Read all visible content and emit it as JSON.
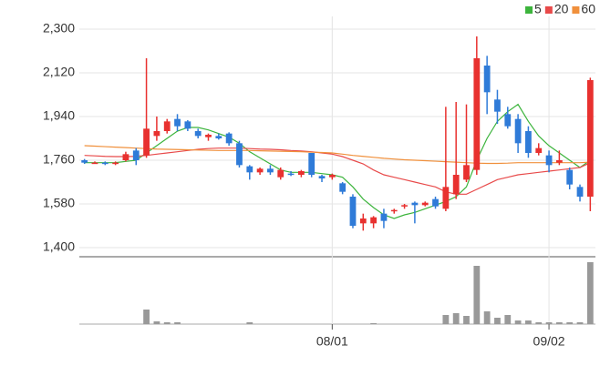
{
  "chart_data": {
    "type": "candlestick",
    "categories": [
      null,
      null,
      null,
      null,
      null,
      null,
      null,
      null,
      null,
      null,
      null,
      null,
      null,
      null,
      null,
      null,
      null,
      null,
      null,
      null,
      null,
      null,
      null,
      null,
      "08/01",
      null,
      null,
      null,
      null,
      null,
      null,
      null,
      null,
      null,
      null,
      null,
      null,
      null,
      null,
      null,
      null,
      null,
      null,
      null,
      null,
      "09/02",
      null,
      null,
      null,
      null
    ],
    "candles": {
      "open": [
        1760,
        1750,
        1750,
        1745,
        1760,
        1800,
        1780,
        1860,
        1880,
        1930,
        1920,
        1880,
        1855,
        1860,
        1870,
        1830,
        1735,
        1710,
        1725,
        1690,
        1705,
        1700,
        1790,
        1695,
        1690,
        1665,
        1610,
        1500,
        1500,
        1540,
        1550,
        1570,
        1585,
        1575,
        1600,
        1560,
        1620,
        1680,
        1720,
        2150,
        2010,
        1950,
        1930,
        1880,
        1790,
        1780,
        1750,
        1720,
        1650,
        1610
      ],
      "high": [
        1765,
        1755,
        1755,
        1755,
        1795,
        1810,
        2180,
        1940,
        1930,
        1950,
        1925,
        1890,
        1870,
        1870,
        1875,
        1840,
        1740,
        1730,
        1740,
        1730,
        1715,
        1720,
        1790,
        1700,
        1705,
        1670,
        1620,
        1540,
        1530,
        1560,
        1560,
        1580,
        1590,
        1590,
        1610,
        1980,
        2000,
        1990,
        2270,
        2190,
        2050,
        1980,
        1950,
        1900,
        1830,
        1800,
        1800,
        1730,
        1660,
        2100
      ],
      "low": [
        1745,
        1745,
        1740,
        1740,
        1755,
        1740,
        1770,
        1840,
        1870,
        1880,
        1880,
        1850,
        1840,
        1845,
        1820,
        1730,
        1680,
        1700,
        1700,
        1680,
        1695,
        1690,
        1690,
        1670,
        1680,
        1620,
        1480,
        1470,
        1480,
        1480,
        1540,
        1560,
        1500,
        1570,
        1560,
        1550,
        1600,
        1670,
        1700,
        1950,
        1910,
        1890,
        1790,
        1770,
        1780,
        1710,
        1740,
        1640,
        1590,
        1550
      ],
      "close": [
        1750,
        1750,
        1745,
        1750,
        1785,
        1760,
        1890,
        1880,
        1920,
        1900,
        1890,
        1860,
        1865,
        1850,
        1830,
        1740,
        1710,
        1725,
        1710,
        1720,
        1700,
        1715,
        1700,
        1685,
        1700,
        1630,
        1490,
        1520,
        1525,
        1510,
        1555,
        1575,
        1575,
        1585,
        1570,
        1650,
        1700,
        1740,
        2180,
        2040,
        1960,
        1900,
        1830,
        1790,
        1810,
        1740,
        1760,
        1660,
        1610,
        2090
      ],
      "up_color": "#e8312f",
      "down_color": "#2f7bd8"
    },
    "series": [
      {
        "name": "5",
        "color": "#3cb43c",
        "values": [
          1750,
          1750,
          1750,
          1750,
          1755,
          1760,
          1790,
          1820,
          1850,
          1880,
          1895,
          1895,
          1885,
          1870,
          1855,
          1830,
          1795,
          1770,
          1745,
          1720,
          1710,
          1710,
          1710,
          1705,
          1700,
          1690,
          1650,
          1600,
          1565,
          1535,
          1520,
          1535,
          1545,
          1560,
          1575,
          1590,
          1610,
          1650,
          1760,
          1850,
          1920,
          1960,
          1990,
          1920,
          1860,
          1820,
          1790,
          1760,
          1730,
          1760
        ]
      },
      {
        "name": "20",
        "color": "#e84a4a",
        "values": [
          1780,
          1778,
          1776,
          1775,
          1775,
          1776,
          1780,
          1785,
          1790,
          1795,
          1800,
          1805,
          1808,
          1810,
          1810,
          1810,
          1808,
          1806,
          1805,
          1803,
          1800,
          1798,
          1795,
          1790,
          1785,
          1775,
          1760,
          1745,
          1720,
          1700,
          1690,
          1680,
          1670,
          1660,
          1650,
          1630,
          1620,
          1620,
          1640,
          1660,
          1680,
          1690,
          1700,
          1705,
          1710,
          1715,
          1720,
          1725,
          1730,
          1750
        ]
      },
      {
        "name": "60",
        "color": "#f0903c",
        "values": [
          1820,
          1818,
          1816,
          1814,
          1812,
          1810,
          1808,
          1806,
          1805,
          1804,
          1803,
          1802,
          1801,
          1800,
          1800,
          1800,
          1800,
          1799,
          1798,
          1797,
          1796,
          1795,
          1793,
          1792,
          1790,
          1785,
          1780,
          1776,
          1772,
          1768,
          1765,
          1762,
          1760,
          1758,
          1756,
          1754,
          1752,
          1750,
          1748,
          1747,
          1747,
          1748,
          1750,
          1750,
          1750,
          1750,
          1750,
          1750,
          1750,
          1752
        ]
      }
    ],
    "volume": [
      0,
      0,
      0,
      0,
      0,
      0,
      16,
      3,
      2,
      2,
      0,
      0,
      0,
      0,
      0,
      0,
      2,
      0,
      0,
      0,
      0,
      0,
      0,
      0,
      0,
      0,
      0,
      0,
      1,
      0,
      0,
      0,
      0,
      0,
      0,
      10,
      12,
      9,
      64,
      14,
      7,
      10,
      4,
      4,
      2,
      2,
      2,
      2,
      2,
      68
    ],
    "volume_color": "#999999",
    "ylim": [
      1400,
      2300
    ],
    "yticks": [
      {
        "value": 1400,
        "label": "1,400"
      },
      {
        "value": 1580,
        "label": "1,580"
      },
      {
        "value": 1760,
        "label": "1,760"
      },
      {
        "value": 1940,
        "label": "1,940"
      },
      {
        "value": 2120,
        "label": "2,120"
      },
      {
        "value": 2300,
        "label": "2,300"
      }
    ],
    "grid": true
  }
}
